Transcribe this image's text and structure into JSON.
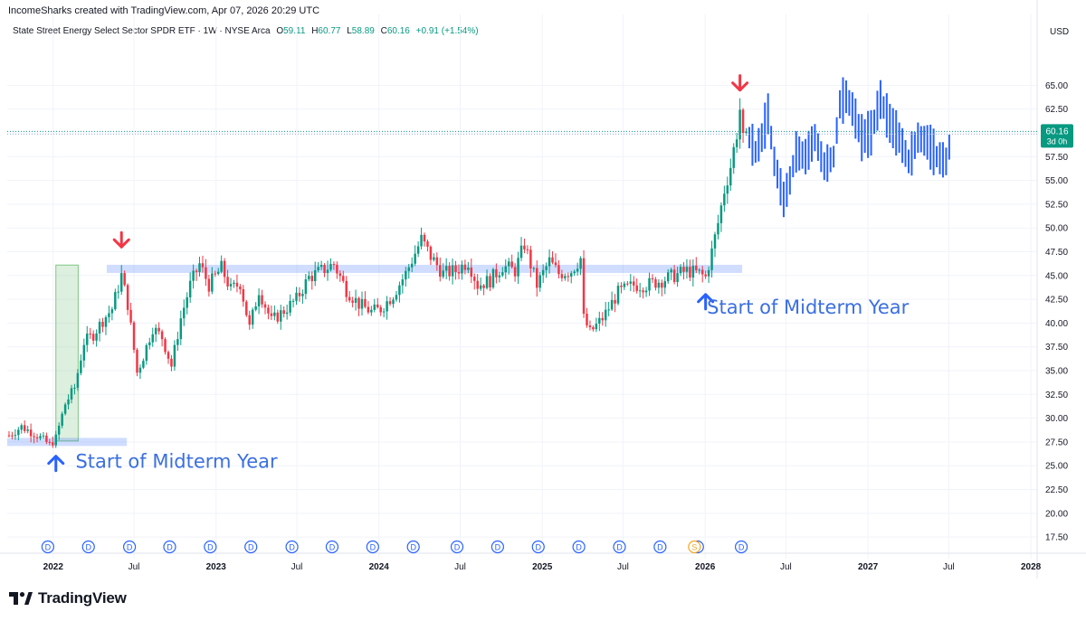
{
  "header": {
    "credit": "IncomeSharks created with TradingView.com, Apr 07, 2026 20:29 UTC",
    "symbol": "State Street Energy Select Sector SPDR ETF · 1W · NYSE Arca",
    "o_label": "O",
    "o_value": "59.11",
    "h_label": "H",
    "h_value": "60.77",
    "l_label": "L",
    "l_value": "58.89",
    "c_label": "C",
    "c_value": "60.16",
    "change": "+0.91 (+1.54%)"
  },
  "currency": "USD",
  "price_tag": {
    "price": "60.16",
    "countdown": "3d 0h"
  },
  "annotations": {
    "midterm_1": "Start of Midterm Year",
    "midterm_2": "Start of Midterm Year"
  },
  "events": {
    "dividend_label": "D",
    "split_label": "S"
  },
  "footer": {
    "brand": "TradingView"
  },
  "colors": {
    "up": "#089981",
    "down": "#f23645",
    "projection": "#2962ff",
    "zone": "#2962ff",
    "highlight": "#a5d6a7",
    "annotation_text": "#3b6fe0",
    "arrow_red": "#f23645",
    "arrow_blue": "#2962ff",
    "last_price_bg": "#089981"
  },
  "chart_data": {
    "type": "candlestick",
    "title": "State Street Energy Select Sector SPDR ETF · 1W · NYSE Arca",
    "xlabel": "",
    "ylabel": "USD",
    "x_range": [
      "2021-09-20",
      "2028-01-15"
    ],
    "ylim": [
      15.8,
      69.6
    ],
    "y_ticks": [
      17.5,
      20.0,
      22.5,
      25.0,
      27.5,
      30.0,
      32.5,
      35.0,
      37.5,
      40.0,
      42.5,
      45.0,
      47.5,
      50.0,
      52.5,
      55.0,
      57.5,
      60.0,
      62.5,
      65.0
    ],
    "x_ticks": [
      {
        "date": "2022-01-01",
        "label": "2022",
        "bold": true
      },
      {
        "date": "2022-07-01",
        "label": "Jul",
        "bold": false
      },
      {
        "date": "2023-01-01",
        "label": "2023",
        "bold": true
      },
      {
        "date": "2023-07-01",
        "label": "Jul",
        "bold": false
      },
      {
        "date": "2024-01-01",
        "label": "2024",
        "bold": true
      },
      {
        "date": "2024-07-01",
        "label": "Jul",
        "bold": false
      },
      {
        "date": "2025-01-01",
        "label": "2025",
        "bold": true
      },
      {
        "date": "2025-07-01",
        "label": "Jul",
        "bold": false
      },
      {
        "date": "2026-01-01",
        "label": "2026",
        "bold": true
      },
      {
        "date": "2026-07-01",
        "label": "Jul",
        "bold": false
      },
      {
        "date": "2027-01-01",
        "label": "2027",
        "bold": true
      },
      {
        "date": "2027-07-01",
        "label": "Jul",
        "bold": false
      },
      {
        "date": "2028-01-01",
        "label": "2028",
        "bold": true
      }
    ],
    "last_price": 60.16,
    "price_waypoints": [
      {
        "d": "2021-09-24",
        "p": 28.2
      },
      {
        "d": "2021-10-22",
        "p": 29.1
      },
      {
        "d": "2021-11-26",
        "p": 28.2
      },
      {
        "d": "2021-12-24",
        "p": 27.2
      },
      {
        "d": "2022-01-07",
        "p": 27.9
      },
      {
        "d": "2022-01-28",
        "p": 31.5
      },
      {
        "d": "2022-02-18",
        "p": 33.2
      },
      {
        "d": "2022-03-11",
        "p": 38.0
      },
      {
        "d": "2022-04-01",
        "p": 38.8
      },
      {
        "d": "2022-04-22",
        "p": 40.3
      },
      {
        "d": "2022-05-13",
        "p": 41.5
      },
      {
        "d": "2022-06-03",
        "p": 45.0
      },
      {
        "d": "2022-06-17",
        "p": 42.0
      },
      {
        "d": "2022-07-08",
        "p": 34.8
      },
      {
        "d": "2022-07-22",
        "p": 36.5
      },
      {
        "d": "2022-08-12",
        "p": 39.5
      },
      {
        "d": "2022-09-02",
        "p": 38.5
      },
      {
        "d": "2022-09-23",
        "p": 35.5
      },
      {
        "d": "2022-10-14",
        "p": 40.5
      },
      {
        "d": "2022-11-04",
        "p": 44.0
      },
      {
        "d": "2022-11-25",
        "p": 46.2
      },
      {
        "d": "2022-12-16",
        "p": 44.0
      },
      {
        "d": "2023-01-13",
        "p": 45.8
      },
      {
        "d": "2023-02-03",
        "p": 43.5
      },
      {
        "d": "2023-02-24",
        "p": 44.2
      },
      {
        "d": "2023-03-17",
        "p": 39.5
      },
      {
        "d": "2023-04-07",
        "p": 43.5
      },
      {
        "d": "2023-05-05",
        "p": 40.2
      },
      {
        "d": "2023-06-02",
        "p": 41.3
      },
      {
        "d": "2023-06-30",
        "p": 42.5
      },
      {
        "d": "2023-07-28",
        "p": 44.8
      },
      {
        "d": "2023-08-25",
        "p": 45.5
      },
      {
        "d": "2023-09-22",
        "p": 46.2
      },
      {
        "d": "2023-10-20",
        "p": 43.5
      },
      {
        "d": "2023-11-17",
        "p": 42.0
      },
      {
        "d": "2023-12-15",
        "p": 41.2
      },
      {
        "d": "2024-01-05",
        "p": 41.5
      },
      {
        "d": "2024-02-02",
        "p": 43.0
      },
      {
        "d": "2024-03-01",
        "p": 45.2
      },
      {
        "d": "2024-04-05",
        "p": 48.8
      },
      {
        "d": "2024-04-26",
        "p": 47.0
      },
      {
        "d": "2024-05-24",
        "p": 45.2
      },
      {
        "d": "2024-06-21",
        "p": 45.5
      },
      {
        "d": "2024-07-19",
        "p": 46.5
      },
      {
        "d": "2024-08-09",
        "p": 44.0
      },
      {
        "d": "2024-09-06",
        "p": 44.5
      },
      {
        "d": "2024-10-04",
        "p": 46.0
      },
      {
        "d": "2024-11-01",
        "p": 45.5
      },
      {
        "d": "2024-11-22",
        "p": 48.3
      },
      {
        "d": "2024-12-20",
        "p": 44.0
      },
      {
        "d": "2025-01-17",
        "p": 46.5
      },
      {
        "d": "2025-02-07",
        "p": 45.2
      },
      {
        "d": "2025-03-07",
        "p": 45.5
      },
      {
        "d": "2025-03-28",
        "p": 46.8
      },
      {
        "d": "2025-04-04",
        "p": 40.5
      },
      {
        "d": "2025-04-18",
        "p": 39.0
      },
      {
        "d": "2025-05-16",
        "p": 40.5
      },
      {
        "d": "2025-06-20",
        "p": 43.2
      },
      {
        "d": "2025-07-25",
        "p": 44.0
      },
      {
        "d": "2025-08-22",
        "p": 44.0
      },
      {
        "d": "2025-09-26",
        "p": 44.5
      },
      {
        "d": "2025-10-24",
        "p": 45.0
      },
      {
        "d": "2025-11-21",
        "p": 45.5
      },
      {
        "d": "2025-12-19",
        "p": 45.2
      },
      {
        "d": "2026-01-02",
        "p": 44.8
      },
      {
        "d": "2026-01-16",
        "p": 47.5
      },
      {
        "d": "2026-01-30",
        "p": 50.5
      },
      {
        "d": "2026-02-13",
        "p": 54.0
      },
      {
        "d": "2026-02-27",
        "p": 56.5
      },
      {
        "d": "2026-03-13",
        "p": 60.0
      },
      {
        "d": "2026-03-20",
        "p": 62.5
      },
      {
        "d": "2026-03-27",
        "p": 59.1
      },
      {
        "d": "2026-04-03",
        "p": 60.16
      }
    ],
    "projection_waypoints": [
      {
        "d": "2026-04-10",
        "p": 59.5
      },
      {
        "d": "2026-04-24",
        "p": 58.0
      },
      {
        "d": "2026-05-08",
        "p": 59.5
      },
      {
        "d": "2026-05-22",
        "p": 62.0
      },
      {
        "d": "2026-06-05",
        "p": 57.0
      },
      {
        "d": "2026-06-26",
        "p": 53.0
      },
      {
        "d": "2026-07-10",
        "p": 55.0
      },
      {
        "d": "2026-07-24",
        "p": 58.0
      },
      {
        "d": "2026-08-14",
        "p": 57.5
      },
      {
        "d": "2026-09-04",
        "p": 59.5
      },
      {
        "d": "2026-09-25",
        "p": 56.5
      },
      {
        "d": "2026-10-16",
        "p": 57.5
      },
      {
        "d": "2026-10-30",
        "p": 63.0
      },
      {
        "d": "2026-11-13",
        "p": 63.8
      },
      {
        "d": "2026-11-27",
        "p": 62.5
      },
      {
        "d": "2026-12-18",
        "p": 59.5
      },
      {
        "d": "2027-01-08",
        "p": 60.0
      },
      {
        "d": "2027-01-29",
        "p": 63.5
      },
      {
        "d": "2027-02-19",
        "p": 61.0
      },
      {
        "d": "2027-03-12",
        "p": 59.5
      },
      {
        "d": "2027-04-02",
        "p": 57.0
      },
      {
        "d": "2027-04-23",
        "p": 59.5
      },
      {
        "d": "2027-05-14",
        "p": 59.0
      },
      {
        "d": "2027-06-04",
        "p": 57.5
      },
      {
        "d": "2027-06-25",
        "p": 57.0
      },
      {
        "d": "2027-07-02",
        "p": 58.5
      }
    ],
    "support_zones": [
      {
        "from": "2021-09-20",
        "to": "2022-06-15",
        "price": 27.5
      },
      {
        "from": "2022-05-01",
        "to": "2026-03-25",
        "price": 45.7
      }
    ],
    "highlight_box": {
      "from": "2022-01-07",
      "to": "2022-02-26",
      "low": 27.6,
      "high": 46.1
    },
    "markers": [
      {
        "kind": "arrow-down",
        "date": "2022-06-03",
        "price": 48.0
      },
      {
        "kind": "arrow-down",
        "date": "2026-03-20",
        "price": 64.5
      },
      {
        "kind": "arrow-up",
        "date": "2022-01-07",
        "price": 26.0
      },
      {
        "kind": "arrow-up",
        "date": "2026-01-02",
        "price": 43.0
      }
    ],
    "annotation_anchors": [
      {
        "key": "midterm_1",
        "date": "2022-02-20",
        "price": 24.8
      },
      {
        "key": "midterm_2",
        "date": "2026-01-05",
        "price": 41.0
      }
    ],
    "dividend_dates": [
      "2021-12-20",
      "2022-03-21",
      "2022-06-21",
      "2022-09-19",
      "2022-12-19",
      "2023-03-20",
      "2023-06-20",
      "2023-09-18",
      "2023-12-18",
      "2024-03-18",
      "2024-06-24",
      "2024-09-23",
      "2024-12-23",
      "2025-03-24",
      "2025-06-23",
      "2025-09-22",
      "2025-12-15",
      "2026-03-23"
    ],
    "split_date": "2025-12-08"
  }
}
